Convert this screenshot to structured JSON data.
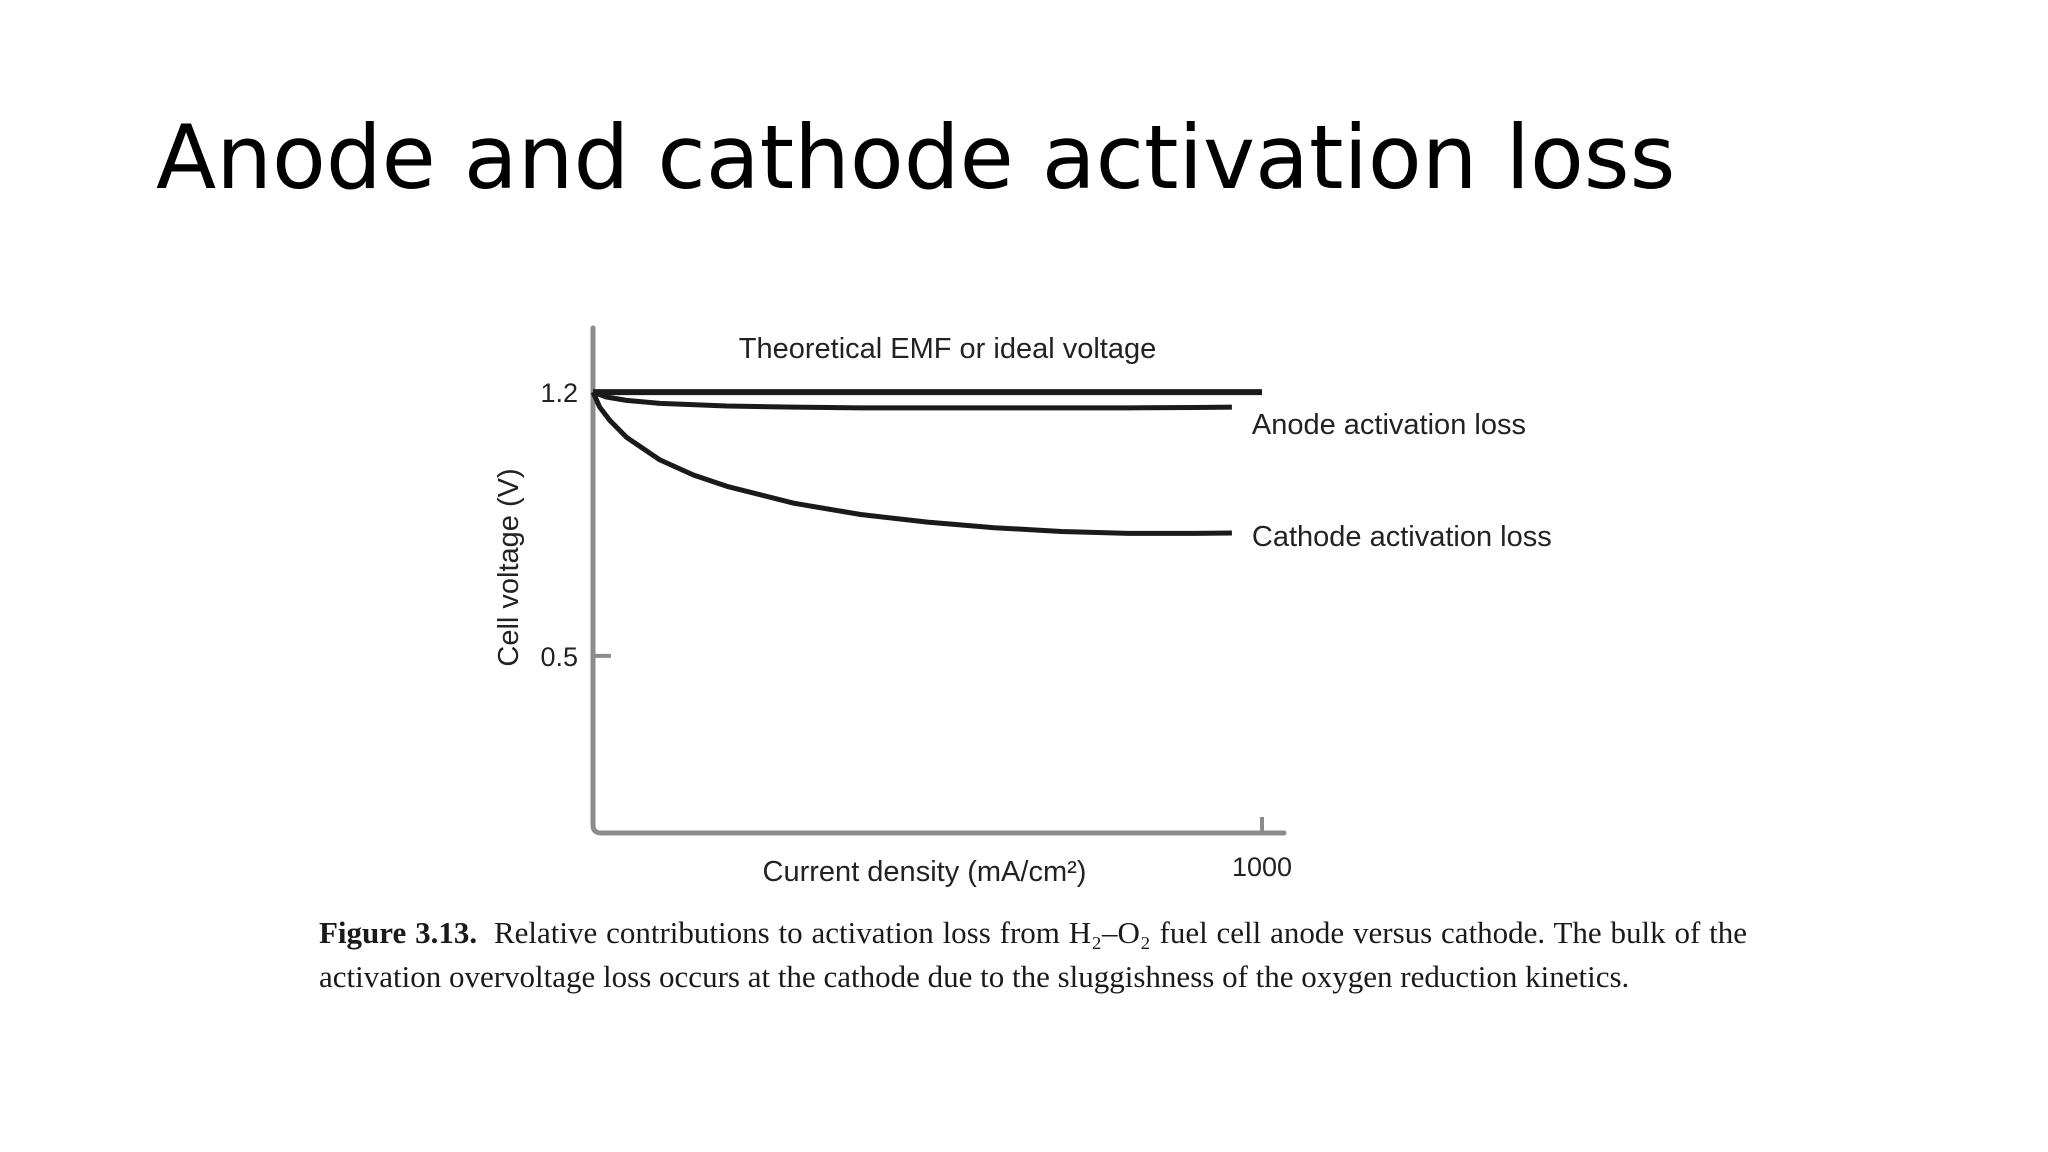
{
  "slide": {
    "title": "Anode and cathode activation loss"
  },
  "chart_data": {
    "type": "line",
    "xlabel": "Current density (mA/cm²)",
    "ylabel": "Cell voltage (V)",
    "xlim": [
      0,
      1000
    ],
    "ylim": [
      0.03,
      1.37
    ],
    "x_ticks": [
      {
        "value": 1000,
        "label": "1000"
      }
    ],
    "y_ticks": [
      {
        "value": 1.2,
        "label": "1.2"
      },
      {
        "value": 0.5,
        "label": "0.5"
      }
    ],
    "grid": false,
    "legend": "none",
    "series": [
      {
        "name": "Theoretical EMF or ideal voltage",
        "x": [
          0,
          1000
        ],
        "y": [
          1.2,
          1.2
        ]
      },
      {
        "name": "Anode activation loss",
        "x": [
          0,
          20,
          50,
          100,
          200,
          300,
          400,
          500,
          600,
          700,
          800,
          900,
          955
        ],
        "y": [
          1.2,
          1.187,
          1.178,
          1.17,
          1.163,
          1.16,
          1.158,
          1.158,
          1.158,
          1.158,
          1.158,
          1.159,
          1.16
        ]
      },
      {
        "name": "Cathode activation loss",
        "x": [
          0,
          10,
          25,
          50,
          100,
          150,
          200,
          300,
          400,
          500,
          600,
          700,
          800,
          900,
          955
        ],
        "y": [
          1.2,
          1.16,
          1.125,
          1.08,
          1.02,
          0.98,
          0.95,
          0.905,
          0.875,
          0.855,
          0.84,
          0.83,
          0.825,
          0.825,
          0.826
        ]
      }
    ]
  },
  "caption": {
    "label": "Figure 3.13.",
    "text": "Relative contributions to activation loss from H₂–O₂ fuel cell anode versus cathode. The bulk of the activation overvoltage loss occurs at the cathode due to the sluggishness of the oxygen reduction kinetics."
  },
  "colors": {
    "text": "#000000",
    "curve": "#1a1a1a",
    "axis": "#8c8c8c"
  }
}
